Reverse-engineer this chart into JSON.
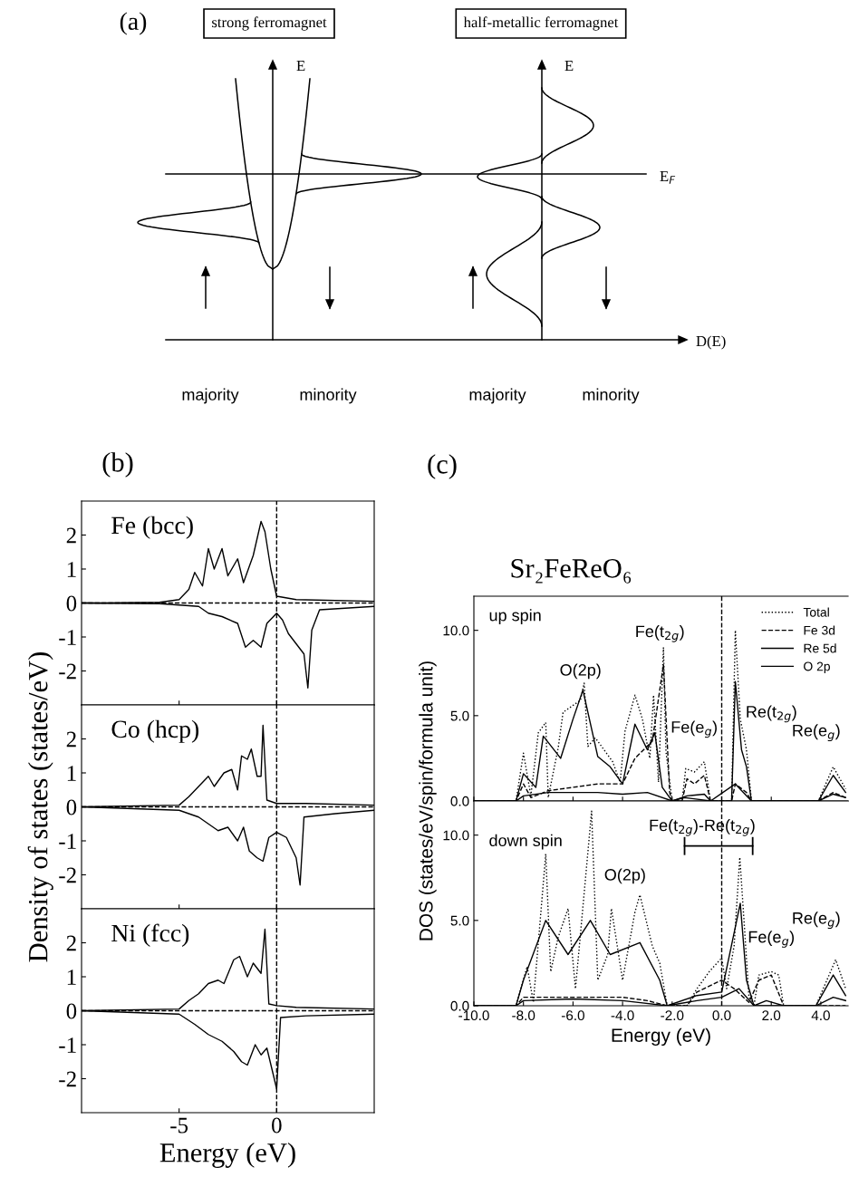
{
  "chart_data": [
    {
      "type": "other",
      "title": "(a)",
      "annotations": [
        "strong ferromagnet",
        "half-metallic ferromagnet",
        "E",
        "E",
        "E$_{F}$",
        "D(E)",
        "majority",
        "minority",
        "majority",
        "minority"
      ]
    },
    {
      "type": "line",
      "title": "(b)",
      "xlim": [
        -10,
        5
      ],
      "xticks": [
        -5,
        0
      ],
      "ylim": [
        -3,
        3
      ],
      "yticks": [
        -2,
        -1,
        0,
        1,
        2
      ],
      "tick_labels": "y",
      "annotations": [
        "Fe (bcc)"
      ],
      "ref_lines": [
        {
          "axis": "y",
          "value": 0,
          "line_style": "dashed",
          "color": "#000000"
        },
        {
          "axis": "x",
          "value": 0,
          "line_style": "dashed",
          "color": "#000000"
        }
      ],
      "series": [
        {
          "color": "#000000",
          "x": [
            -10,
            -9,
            -6,
            -5,
            -4.5,
            -4.2,
            -3.8,
            -3.5,
            -3.2,
            -2.8,
            -2.5,
            -2.0,
            -1.7,
            -1.2,
            -0.8,
            -0.6,
            -0.3,
            0,
            1,
            5
          ],
          "values": [
            0,
            0,
            0.02,
            0.1,
            0.4,
            0.9,
            0.5,
            1.6,
            1.0,
            1.6,
            0.8,
            1.3,
            0.6,
            1.4,
            2.4,
            2.1,
            1.0,
            0.2,
            0.1,
            0.05
          ]
        },
        {
          "color": "#000000",
          "x": [
            -10,
            -6,
            -4,
            -3.5,
            -2.8,
            -2.0,
            -1.6,
            -1.2,
            -0.8,
            -0.5,
            0,
            0.3,
            0.6,
            1.0,
            1.4,
            1.6,
            1.8,
            2.2,
            5
          ],
          "values": [
            0,
            -0.02,
            -0.1,
            -0.3,
            -0.4,
            -0.6,
            -1.3,
            -1.1,
            -1.3,
            -0.6,
            -0.3,
            -0.5,
            -0.9,
            -1.2,
            -1.5,
            -2.5,
            -0.8,
            -0.2,
            -0.1
          ]
        }
      ]
    },
    {
      "type": "line",
      "xlim": [
        -10,
        5
      ],
      "xticks": [
        -5,
        0
      ],
      "ylim": [
        -3,
        3
      ],
      "yticks": [
        -2,
        -1,
        0,
        1,
        2
      ],
      "tick_labels": "y",
      "ylabel": "Density of states (states/eV)",
      "annotations": [
        "Co (hcp)"
      ],
      "ref_lines": [
        {
          "axis": "y",
          "value": 0,
          "line_style": "dashed",
          "color": "#000000"
        },
        {
          "axis": "x",
          "value": 0,
          "line_style": "dashed",
          "color": "#000000"
        }
      ],
      "series": [
        {
          "color": "#000000",
          "x": [
            -10,
            -5,
            -4.5,
            -4,
            -3.5,
            -3.2,
            -2.7,
            -2.3,
            -2.0,
            -1.8,
            -1.5,
            -1.3,
            -1.0,
            -0.8,
            -0.7,
            -0.5,
            0,
            1.5,
            5
          ],
          "values": [
            0,
            0.05,
            0.3,
            0.6,
            0.9,
            0.6,
            1.0,
            1.1,
            0.5,
            1.5,
            1.4,
            1.7,
            0.9,
            0.9,
            2.4,
            0.2,
            0.1,
            0.1,
            0.05
          ]
        },
        {
          "color": "#000000",
          "x": [
            -10,
            -5,
            -4,
            -3,
            -2.5,
            -2,
            -1.7,
            -1.4,
            -1.0,
            -0.7,
            -0.4,
            0,
            0.5,
            1.0,
            1.2,
            1.4,
            3,
            5
          ],
          "values": [
            0,
            -0.1,
            -0.3,
            -0.7,
            -0.6,
            -1.0,
            -0.6,
            -1.3,
            -1.5,
            -1.6,
            -0.9,
            -0.75,
            -0.9,
            -1.5,
            -2.3,
            -0.3,
            -0.2,
            -0.1
          ]
        }
      ]
    },
    {
      "type": "line",
      "xlim": [
        -10,
        5
      ],
      "xticks": [
        -5,
        0
      ],
      "ylim": [
        -3,
        3
      ],
      "yticks": [
        -2,
        -1,
        0,
        1,
        2
      ],
      "xlabel": "Energy (eV)",
      "annotations": [
        "Ni (fcc)"
      ],
      "ref_lines": [
        {
          "axis": "y",
          "value": 0,
          "line_style": "dashed",
          "color": "#000000"
        },
        {
          "axis": "x",
          "value": 0,
          "line_style": "dashed",
          "color": "#000000"
        }
      ],
      "series": [
        {
          "color": "#000000",
          "x": [
            -10,
            -5,
            -4.5,
            -4,
            -3.5,
            -3.0,
            -2.7,
            -2.2,
            -1.9,
            -1.5,
            -1.2,
            -0.8,
            -0.6,
            -0.4,
            0,
            1,
            5
          ],
          "values": [
            0,
            0.05,
            0.3,
            0.5,
            0.8,
            0.9,
            0.8,
            1.5,
            1.6,
            1.0,
            1.4,
            1.1,
            2.4,
            0.2,
            0.15,
            0.1,
            0.05
          ]
        },
        {
          "color": "#000000",
          "x": [
            -10,
            -5,
            -4.2,
            -3.5,
            -2.8,
            -2.2,
            -1.8,
            -1.5,
            -1.1,
            -0.8,
            -0.5,
            0,
            0.2,
            1.5,
            5
          ],
          "values": [
            0,
            -0.1,
            -0.4,
            -0.7,
            -0.9,
            -1.2,
            -1.5,
            -1.6,
            -1.0,
            -1.3,
            -1.1,
            -2.3,
            -0.2,
            -0.15,
            -0.1
          ]
        }
      ]
    },
    {
      "type": "line",
      "title": "(c)",
      "subtitle": "Sr₂FeReO₆",
      "xlim": [
        -10,
        5.1
      ],
      "xticks": [
        {
          "value": -10,
          "label": null
        },
        {
          "value": -8,
          "label": null
        },
        {
          "value": -6,
          "label": null
        },
        {
          "value": -4,
          "label": null
        },
        {
          "value": -2,
          "label": null
        },
        {
          "value": 0,
          "label": null
        },
        {
          "value": 2,
          "label": null
        },
        {
          "value": 4,
          "label": null
        }
      ],
      "ylim": [
        0,
        12
      ],
      "yticks": [
        {
          "value": 0,
          "label": "0.0"
        },
        {
          "value": 5,
          "label": "5.0"
        },
        {
          "value": 10,
          "label": "10.0"
        }
      ],
      "tick_labels": "y",
      "legend": "top right",
      "annotations": [
        "up spin",
        "O(2p)",
        "Fe(t$_{2g}$)",
        "Fe(e$_{g}$)",
        "Re(t$_{2g}$)",
        "Re(e$_{g}$)"
      ],
      "ref_lines": [
        {
          "axis": "x",
          "value": 0,
          "line_style": "dashed",
          "color": "#000000"
        }
      ],
      "series": [
        {
          "name": "Total",
          "color": "#000000",
          "line_style": "dotted",
          "x": [
            -10,
            -8.3,
            -8.0,
            -7.7,
            -7.4,
            -7.1,
            -7.0,
            -6.6,
            -6.4,
            -6.1,
            -5.7,
            -5.55,
            -5.4,
            -5.1,
            -4.7,
            -4.4,
            -4.1,
            -3.9,
            -3.5,
            -3.2,
            -2.9,
            -2.75,
            -2.55,
            -2.35,
            -2.25,
            -2.0,
            -1.6,
            -1.45,
            -1.1,
            -0.7,
            -0.45,
            0.4,
            0.55,
            0.75,
            1.0,
            1.2,
            3.9,
            4.5,
            5.0
          ],
          "values": [
            0,
            0,
            2.8,
            0.3,
            4.0,
            4.6,
            0.2,
            3.1,
            5.2,
            5.5,
            5.9,
            6.9,
            3.2,
            3.7,
            2.9,
            2.3,
            1.1,
            4.1,
            6.2,
            4.8,
            2.5,
            6.2,
            1.1,
            9.0,
            2.9,
            0,
            0,
            1.9,
            1.7,
            2.3,
            0,
            0,
            10.0,
            4.8,
            3.0,
            0,
            0,
            2.0,
            0.7
          ]
        },
        {
          "name": "Fe 3d",
          "color": "#000000",
          "line_style": "dashed",
          "x": [
            -10,
            -8.3,
            -8.0,
            -7.7,
            -7.0,
            -6.0,
            -5.0,
            -4.0,
            -3.5,
            -2.8,
            -2.35,
            -2.1,
            -2.0,
            -1.6,
            -1.4,
            -1.1,
            -0.7,
            -0.45,
            0.4,
            0.55,
            1.0,
            1.2,
            3.9,
            4.5,
            5.0
          ],
          "values": [
            0,
            0,
            1.0,
            0.2,
            0.6,
            0.8,
            1.0,
            1.0,
            2.5,
            3.5,
            8.0,
            0.5,
            0,
            0,
            1.3,
            1.0,
            1.5,
            0,
            0,
            1.0,
            0.5,
            0,
            0,
            0.5,
            0.2
          ]
        },
        {
          "name": "Re 5d",
          "color": "#000000",
          "line_style": "solid",
          "x": [
            -10,
            -8.3,
            -8.0,
            -7.0,
            -6.0,
            -5.0,
            -4.0,
            -3.0,
            -2.0,
            -1.4,
            -0.7,
            -0.45,
            0.4,
            0.55,
            0.8,
            1.0,
            1.2,
            3.9,
            4.5,
            5.0
          ],
          "values": [
            0,
            0,
            0.3,
            0.5,
            0.5,
            0.5,
            0.4,
            0.5,
            0,
            0.3,
            0.4,
            0,
            0,
            7.0,
            3.0,
            2.0,
            0,
            0,
            1.5,
            0.5
          ]
        },
        {
          "name": "O 2p",
          "color": "#000000",
          "line_style": "solid",
          "x": [
            -10,
            -8.3,
            -8.0,
            -7.5,
            -7.2,
            -6.5,
            -6.0,
            -5.6,
            -5.0,
            -4.5,
            -4.0,
            -3.5,
            -3.0,
            -2.7,
            -2.4,
            -2.0,
            -1.5,
            -0.45,
            0.55,
            1.2,
            3.9,
            4.5,
            5.0
          ],
          "values": [
            0,
            0,
            1.6,
            0.8,
            3.8,
            2.5,
            4.8,
            6.5,
            2.6,
            2.0,
            1.0,
            4.5,
            3.0,
            4.0,
            0.8,
            0,
            0.2,
            0,
            1.0,
            0,
            0,
            0.4,
            0.2
          ]
        }
      ]
    },
    {
      "type": "line",
      "xlim": [
        -10,
        5.1
      ],
      "xticks": [
        {
          "value": -10,
          "label": "-10.0"
        },
        {
          "value": -8,
          "label": "-8.0"
        },
        {
          "value": -6,
          "label": "-6.0"
        },
        {
          "value": -4,
          "label": "-4.0"
        },
        {
          "value": -2,
          "label": "-2.0"
        },
        {
          "value": 0,
          "label": "0.0"
        },
        {
          "value": 2,
          "label": "2.0"
        },
        {
          "value": 4,
          "label": "4.0"
        }
      ],
      "ylim": [
        0,
        12
      ],
      "yticks": [
        {
          "value": 0,
          "label": "0.0"
        },
        {
          "value": 5,
          "label": "5.0"
        },
        {
          "value": 10,
          "label": "10.0"
        }
      ],
      "xlabel": "Energy (eV)",
      "ylabel": "DOS (states/eV/spin/formula unit)",
      "annotations": [
        "down spin",
        "O(2p)",
        "Fe(e$_{g}$)",
        "Re(e$_{g}$)",
        "Fe(t$_{2g}$)-Re(t$_{2g}$)"
      ],
      "ref_lines": [
        {
          "axis": "x",
          "value": 0,
          "line_style": "dashed",
          "color": "#000000"
        }
      ],
      "series": [
        {
          "color": "#000000",
          "line_style": "dotted",
          "x": [
            -10,
            -8.3,
            -7.85,
            -7.6,
            -7.1,
            -6.9,
            -6.6,
            -6.2,
            -5.9,
            -5.25,
            -5.0,
            -4.6,
            -4.45,
            -4.0,
            -3.5,
            -3.3,
            -2.8,
            -2.5,
            -2.2,
            -1.4,
            -1.0,
            -0.5,
            0.0,
            0.2,
            0.5,
            0.73,
            0.9,
            1.1,
            1.3,
            1.5,
            2.0,
            2.3,
            2.5,
            3.8,
            4.6,
            5.0
          ],
          "values": [
            0,
            0,
            2.3,
            0.2,
            8.9,
            2.0,
            4.0,
            5.7,
            1.0,
            11.4,
            1.5,
            3.0,
            5.7,
            1.5,
            5.5,
            6.5,
            3.5,
            2.5,
            0,
            0,
            1.0,
            2.0,
            2.8,
            1.0,
            3.5,
            8.7,
            5.0,
            0.5,
            0,
            1.8,
            2.0,
            1.8,
            0,
            0,
            2.7,
            1.0
          ]
        },
        {
          "color": "#000000",
          "line_style": "dashed",
          "x": [
            -10,
            -8.3,
            -8,
            -6,
            -4,
            -3,
            -2.2,
            -1.4,
            -1,
            0,
            0.5,
            1.1,
            1.5,
            2.0,
            2.5,
            5
          ],
          "values": [
            0,
            0,
            0.5,
            0.5,
            0.5,
            0.3,
            0,
            0,
            0.8,
            1.5,
            1.0,
            0.2,
            1.5,
            1.8,
            0,
            0
          ]
        },
        {
          "color": "#000000",
          "line_style": "solid",
          "x": [
            -10,
            -8.3,
            -8,
            -6,
            -4,
            -2.2,
            -1,
            0,
            0.75,
            1.0,
            1.3,
            1.8,
            2.5,
            3.8,
            4.5,
            5
          ],
          "values": [
            0,
            0,
            0.3,
            0.4,
            0.3,
            0,
            0.6,
            0.8,
            6.0,
            1.5,
            0,
            0.3,
            0,
            0,
            1.8,
            0.6
          ]
        },
        {
          "color": "#000000",
          "line_style": "solid",
          "x": [
            -10,
            -8.3,
            -8,
            -7.1,
            -6.2,
            -5.3,
            -4.5,
            -3.3,
            -2.5,
            -2.2,
            -1,
            0,
            0.7,
            1.3,
            3.8,
            4.5,
            5
          ],
          "values": [
            0,
            0,
            1.5,
            5.0,
            3.0,
            5.0,
            3.0,
            3.7,
            1.5,
            0,
            0.3,
            0.5,
            1.0,
            0,
            0,
            0.5,
            0.3
          ]
        }
      ]
    }
  ]
}
